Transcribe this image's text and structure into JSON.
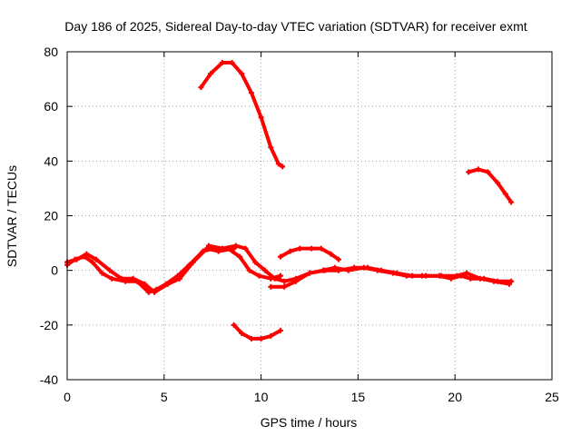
{
  "chart_data": {
    "type": "scatter",
    "title": "Day 186 of 2025, Sidereal Day-to-day VTEC variation (SDTVAR) for receiver exmt",
    "xlabel": "GPS time / hours",
    "ylabel": "SDTVAR / TECUs",
    "xlim": [
      0,
      25
    ],
    "ylim": [
      -40,
      80
    ],
    "xticks": [
      "0",
      "5",
      "10",
      "15",
      "20",
      "25"
    ],
    "yticks": [
      "-40",
      "-20",
      "0",
      "20",
      "40",
      "60",
      "80"
    ],
    "grid": true,
    "colors": {
      "series": "#ff0000"
    },
    "series": [
      {
        "name": "track-main",
        "x": [
          0,
          0.4,
          0.9,
          1.3,
          1.8,
          2.3,
          3.0,
          3.6,
          4.2,
          4.6,
          5.1,
          5.7,
          6.3,
          7.0,
          7.6,
          8.3,
          8.9,
          9.4,
          9.9,
          10.5,
          11.0
        ],
        "y": [
          2,
          4,
          5,
          3,
          -1,
          -3,
          -4,
          -4,
          -8,
          -7,
          -5,
          -2,
          2,
          7,
          8,
          8,
          5,
          0,
          -2,
          -3,
          -2
        ]
      },
      {
        "name": "track-a",
        "x": [
          0,
          0.5,
          1.0,
          1.5,
          2.2,
          2.8,
          3.4,
          4.0,
          4.5,
          5.2,
          5.8,
          6.5,
          7.2,
          7.8,
          8.6
        ],
        "y": [
          3,
          4,
          6,
          4,
          0,
          -3,
          -3,
          -5,
          -8,
          -5,
          -3,
          3,
          8,
          7,
          8
        ]
      },
      {
        "name": "track-b",
        "x": [
          7.3,
          8.0,
          8.7,
          9.2,
          9.7,
          10.2,
          10.7,
          11.2,
          11.8,
          12.5,
          13.2,
          13.8,
          14.5,
          15.3,
          16.0,
          16.8,
          17.5,
          18.3,
          19.2,
          19.8,
          20.3,
          20.8,
          21.5,
          22.2,
          22.9
        ],
        "y": [
          9,
          8,
          9,
          8,
          3,
          0,
          -3,
          -4,
          -3,
          -1,
          0,
          1,
          0,
          1,
          0,
          -1,
          -2,
          -2,
          -2,
          -3,
          -2,
          -3,
          -3,
          -4,
          -4
        ]
      },
      {
        "name": "track-c",
        "x": [
          10.5,
          11.2,
          11.8,
          12.5,
          13.3,
          14.0,
          14.8,
          15.5,
          16.2,
          17.0,
          17.8,
          18.5,
          19.3,
          20.1,
          20.6,
          21.3,
          22.0,
          22.8
        ],
        "y": [
          -6,
          -6,
          -4,
          -1,
          0,
          0,
          1,
          1,
          0,
          -1,
          -2,
          -2,
          -2,
          -2,
          -1,
          -3,
          -4,
          -5
        ]
      },
      {
        "name": "track-d",
        "x": [
          11.0,
          11.5,
          12.0,
          12.6,
          13.1,
          13.6,
          14.0
        ],
        "y": [
          5,
          7,
          8,
          8,
          8,
          6,
          4
        ]
      },
      {
        "name": "track-e",
        "x": [
          6.9,
          7.4,
          8.0,
          8.5,
          9.0,
          9.5,
          10.0,
          10.5,
          10.9,
          11.1
        ],
        "y": [
          67,
          72,
          76,
          76,
          72,
          65,
          56,
          45,
          39,
          38
        ]
      },
      {
        "name": "track-f",
        "x": [
          8.6,
          9.0,
          9.5,
          10.0,
          10.5,
          11.0
        ],
        "y": [
          -20,
          -23,
          -25,
          -25,
          -24,
          -22
        ]
      },
      {
        "name": "track-g",
        "x": [
          20.7,
          21.2,
          21.7,
          22.2,
          22.6,
          22.9
        ],
        "y": [
          36,
          37,
          36,
          32,
          28,
          25
        ]
      }
    ]
  }
}
